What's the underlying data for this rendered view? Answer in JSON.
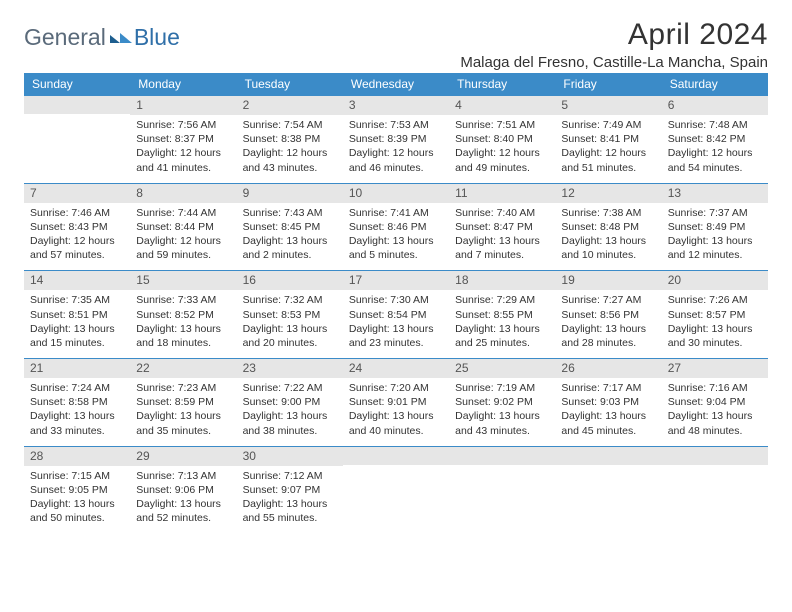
{
  "logo": {
    "text1": "General",
    "text2": "Blue"
  },
  "title": "April 2024",
  "location": "Malaga del Fresno, Castille-La Mancha, Spain",
  "colors": {
    "header_bg": "#3b8bc8",
    "header_text": "#ffffff",
    "daynum_bg": "#e6e6e6",
    "rule": "#3b8bc8",
    "body_text": "#333333",
    "logo_gray": "#5a6a7a",
    "logo_blue": "#2f6fa8"
  },
  "daynames": [
    "Sunday",
    "Monday",
    "Tuesday",
    "Wednesday",
    "Thursday",
    "Friday",
    "Saturday"
  ],
  "weeks": [
    [
      {
        "n": "",
        "sr": "",
        "ss": "",
        "dl": ""
      },
      {
        "n": "1",
        "sr": "Sunrise: 7:56 AM",
        "ss": "Sunset: 8:37 PM",
        "dl": "Daylight: 12 hours and 41 minutes."
      },
      {
        "n": "2",
        "sr": "Sunrise: 7:54 AM",
        "ss": "Sunset: 8:38 PM",
        "dl": "Daylight: 12 hours and 43 minutes."
      },
      {
        "n": "3",
        "sr": "Sunrise: 7:53 AM",
        "ss": "Sunset: 8:39 PM",
        "dl": "Daylight: 12 hours and 46 minutes."
      },
      {
        "n": "4",
        "sr": "Sunrise: 7:51 AM",
        "ss": "Sunset: 8:40 PM",
        "dl": "Daylight: 12 hours and 49 minutes."
      },
      {
        "n": "5",
        "sr": "Sunrise: 7:49 AM",
        "ss": "Sunset: 8:41 PM",
        "dl": "Daylight: 12 hours and 51 minutes."
      },
      {
        "n": "6",
        "sr": "Sunrise: 7:48 AM",
        "ss": "Sunset: 8:42 PM",
        "dl": "Daylight: 12 hours and 54 minutes."
      }
    ],
    [
      {
        "n": "7",
        "sr": "Sunrise: 7:46 AM",
        "ss": "Sunset: 8:43 PM",
        "dl": "Daylight: 12 hours and 57 minutes."
      },
      {
        "n": "8",
        "sr": "Sunrise: 7:44 AM",
        "ss": "Sunset: 8:44 PM",
        "dl": "Daylight: 12 hours and 59 minutes."
      },
      {
        "n": "9",
        "sr": "Sunrise: 7:43 AM",
        "ss": "Sunset: 8:45 PM",
        "dl": "Daylight: 13 hours and 2 minutes."
      },
      {
        "n": "10",
        "sr": "Sunrise: 7:41 AM",
        "ss": "Sunset: 8:46 PM",
        "dl": "Daylight: 13 hours and 5 minutes."
      },
      {
        "n": "11",
        "sr": "Sunrise: 7:40 AM",
        "ss": "Sunset: 8:47 PM",
        "dl": "Daylight: 13 hours and 7 minutes."
      },
      {
        "n": "12",
        "sr": "Sunrise: 7:38 AM",
        "ss": "Sunset: 8:48 PM",
        "dl": "Daylight: 13 hours and 10 minutes."
      },
      {
        "n": "13",
        "sr": "Sunrise: 7:37 AM",
        "ss": "Sunset: 8:49 PM",
        "dl": "Daylight: 13 hours and 12 minutes."
      }
    ],
    [
      {
        "n": "14",
        "sr": "Sunrise: 7:35 AM",
        "ss": "Sunset: 8:51 PM",
        "dl": "Daylight: 13 hours and 15 minutes."
      },
      {
        "n": "15",
        "sr": "Sunrise: 7:33 AM",
        "ss": "Sunset: 8:52 PM",
        "dl": "Daylight: 13 hours and 18 minutes."
      },
      {
        "n": "16",
        "sr": "Sunrise: 7:32 AM",
        "ss": "Sunset: 8:53 PM",
        "dl": "Daylight: 13 hours and 20 minutes."
      },
      {
        "n": "17",
        "sr": "Sunrise: 7:30 AM",
        "ss": "Sunset: 8:54 PM",
        "dl": "Daylight: 13 hours and 23 minutes."
      },
      {
        "n": "18",
        "sr": "Sunrise: 7:29 AM",
        "ss": "Sunset: 8:55 PM",
        "dl": "Daylight: 13 hours and 25 minutes."
      },
      {
        "n": "19",
        "sr": "Sunrise: 7:27 AM",
        "ss": "Sunset: 8:56 PM",
        "dl": "Daylight: 13 hours and 28 minutes."
      },
      {
        "n": "20",
        "sr": "Sunrise: 7:26 AM",
        "ss": "Sunset: 8:57 PM",
        "dl": "Daylight: 13 hours and 30 minutes."
      }
    ],
    [
      {
        "n": "21",
        "sr": "Sunrise: 7:24 AM",
        "ss": "Sunset: 8:58 PM",
        "dl": "Daylight: 13 hours and 33 minutes."
      },
      {
        "n": "22",
        "sr": "Sunrise: 7:23 AM",
        "ss": "Sunset: 8:59 PM",
        "dl": "Daylight: 13 hours and 35 minutes."
      },
      {
        "n": "23",
        "sr": "Sunrise: 7:22 AM",
        "ss": "Sunset: 9:00 PM",
        "dl": "Daylight: 13 hours and 38 minutes."
      },
      {
        "n": "24",
        "sr": "Sunrise: 7:20 AM",
        "ss": "Sunset: 9:01 PM",
        "dl": "Daylight: 13 hours and 40 minutes."
      },
      {
        "n": "25",
        "sr": "Sunrise: 7:19 AM",
        "ss": "Sunset: 9:02 PM",
        "dl": "Daylight: 13 hours and 43 minutes."
      },
      {
        "n": "26",
        "sr": "Sunrise: 7:17 AM",
        "ss": "Sunset: 9:03 PM",
        "dl": "Daylight: 13 hours and 45 minutes."
      },
      {
        "n": "27",
        "sr": "Sunrise: 7:16 AM",
        "ss": "Sunset: 9:04 PM",
        "dl": "Daylight: 13 hours and 48 minutes."
      }
    ],
    [
      {
        "n": "28",
        "sr": "Sunrise: 7:15 AM",
        "ss": "Sunset: 9:05 PM",
        "dl": "Daylight: 13 hours and 50 minutes."
      },
      {
        "n": "29",
        "sr": "Sunrise: 7:13 AM",
        "ss": "Sunset: 9:06 PM",
        "dl": "Daylight: 13 hours and 52 minutes."
      },
      {
        "n": "30",
        "sr": "Sunrise: 7:12 AM",
        "ss": "Sunset: 9:07 PM",
        "dl": "Daylight: 13 hours and 55 minutes."
      },
      {
        "n": "",
        "sr": "",
        "ss": "",
        "dl": ""
      },
      {
        "n": "",
        "sr": "",
        "ss": "",
        "dl": ""
      },
      {
        "n": "",
        "sr": "",
        "ss": "",
        "dl": ""
      },
      {
        "n": "",
        "sr": "",
        "ss": "",
        "dl": ""
      }
    ]
  ]
}
